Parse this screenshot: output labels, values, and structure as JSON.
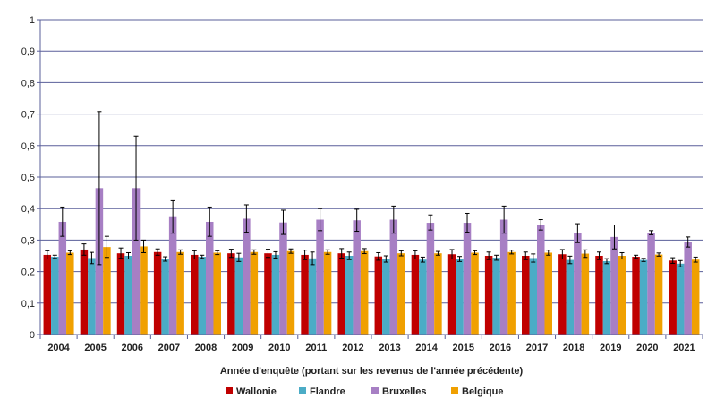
{
  "chart_data": {
    "type": "bar",
    "title": "",
    "xlabel": "Année d'enquête (portant sur les revenus de l'année précédente)",
    "ylabel": "",
    "ylim": [
      0,
      1
    ],
    "yticks": [
      "0",
      "0,1",
      "0,2",
      "0,3",
      "0,4",
      "0,5",
      "0,6",
      "0,7",
      "0,8",
      "0,9",
      "1"
    ],
    "ytick_values": [
      0,
      0.1,
      0.2,
      0.3,
      0.4,
      0.5,
      0.6,
      0.7,
      0.8,
      0.9,
      1
    ],
    "grid": true,
    "legend_position": "bottom",
    "categories": [
      "2004",
      "2005",
      "2006",
      "2007",
      "2008",
      "2009",
      "2010",
      "2011",
      "2012",
      "2013",
      "2014",
      "2015",
      "2016",
      "2017",
      "2018",
      "2019",
      "2020",
      "2021"
    ],
    "series": [
      {
        "name": "Wallonie",
        "color": "#c00000",
        "values": [
          0.253,
          0.27,
          0.258,
          0.262,
          0.253,
          0.258,
          0.258,
          0.253,
          0.258,
          0.248,
          0.253,
          0.255,
          0.25,
          0.25,
          0.255,
          0.25,
          0.247,
          0.235
        ],
        "err_low": [
          0.24,
          0.252,
          0.242,
          0.252,
          0.24,
          0.245,
          0.245,
          0.238,
          0.243,
          0.236,
          0.24,
          0.24,
          0.238,
          0.238,
          0.24,
          0.238,
          0.242,
          0.226
        ],
        "err_high": [
          0.266,
          0.288,
          0.275,
          0.272,
          0.266,
          0.271,
          0.271,
          0.268,
          0.273,
          0.26,
          0.266,
          0.27,
          0.262,
          0.262,
          0.27,
          0.262,
          0.252,
          0.244
        ]
      },
      {
        "name": "Flandre",
        "color": "#4bacc6",
        "values": [
          0.247,
          0.243,
          0.25,
          0.24,
          0.247,
          0.245,
          0.253,
          0.242,
          0.25,
          0.24,
          0.238,
          0.24,
          0.244,
          0.243,
          0.237,
          0.233,
          0.237,
          0.225
        ],
        "err_low": [
          0.242,
          0.225,
          0.24,
          0.233,
          0.242,
          0.232,
          0.243,
          0.222,
          0.238,
          0.23,
          0.23,
          0.232,
          0.236,
          0.23,
          0.225,
          0.225,
          0.232,
          0.215
        ],
        "err_high": [
          0.252,
          0.261,
          0.26,
          0.247,
          0.252,
          0.258,
          0.263,
          0.262,
          0.262,
          0.25,
          0.246,
          0.248,
          0.252,
          0.256,
          0.249,
          0.241,
          0.242,
          0.235
        ]
      },
      {
        "name": "Bruxelles",
        "color": "#a77fc4",
        "values": [
          0.358,
          0.465,
          0.465,
          0.373,
          0.358,
          0.368,
          0.356,
          0.365,
          0.363,
          0.365,
          0.355,
          0.355,
          0.365,
          0.348,
          0.322,
          0.31,
          0.323,
          0.293
        ],
        "err_low": [
          0.312,
          0.222,
          0.3,
          0.322,
          0.312,
          0.325,
          0.318,
          0.33,
          0.328,
          0.322,
          0.332,
          0.325,
          0.322,
          0.332,
          0.292,
          0.272,
          0.317,
          0.278
        ],
        "err_high": [
          0.405,
          0.708,
          0.63,
          0.425,
          0.405,
          0.412,
          0.395,
          0.4,
          0.398,
          0.408,
          0.38,
          0.385,
          0.408,
          0.365,
          0.352,
          0.348,
          0.33,
          0.31
        ]
      },
      {
        "name": "Belgique",
        "color": "#f0a000",
        "values": [
          0.26,
          0.278,
          0.28,
          0.262,
          0.26,
          0.262,
          0.265,
          0.262,
          0.265,
          0.258,
          0.258,
          0.26,
          0.262,
          0.26,
          0.257,
          0.25,
          0.254,
          0.238
        ],
        "err_low": [
          0.254,
          0.245,
          0.26,
          0.255,
          0.254,
          0.255,
          0.258,
          0.255,
          0.257,
          0.25,
          0.252,
          0.254,
          0.256,
          0.252,
          0.245,
          0.24,
          0.249,
          0.23
        ],
        "err_high": [
          0.266,
          0.312,
          0.3,
          0.269,
          0.266,
          0.269,
          0.272,
          0.269,
          0.273,
          0.266,
          0.264,
          0.266,
          0.268,
          0.268,
          0.269,
          0.26,
          0.259,
          0.246
        ]
      }
    ]
  }
}
